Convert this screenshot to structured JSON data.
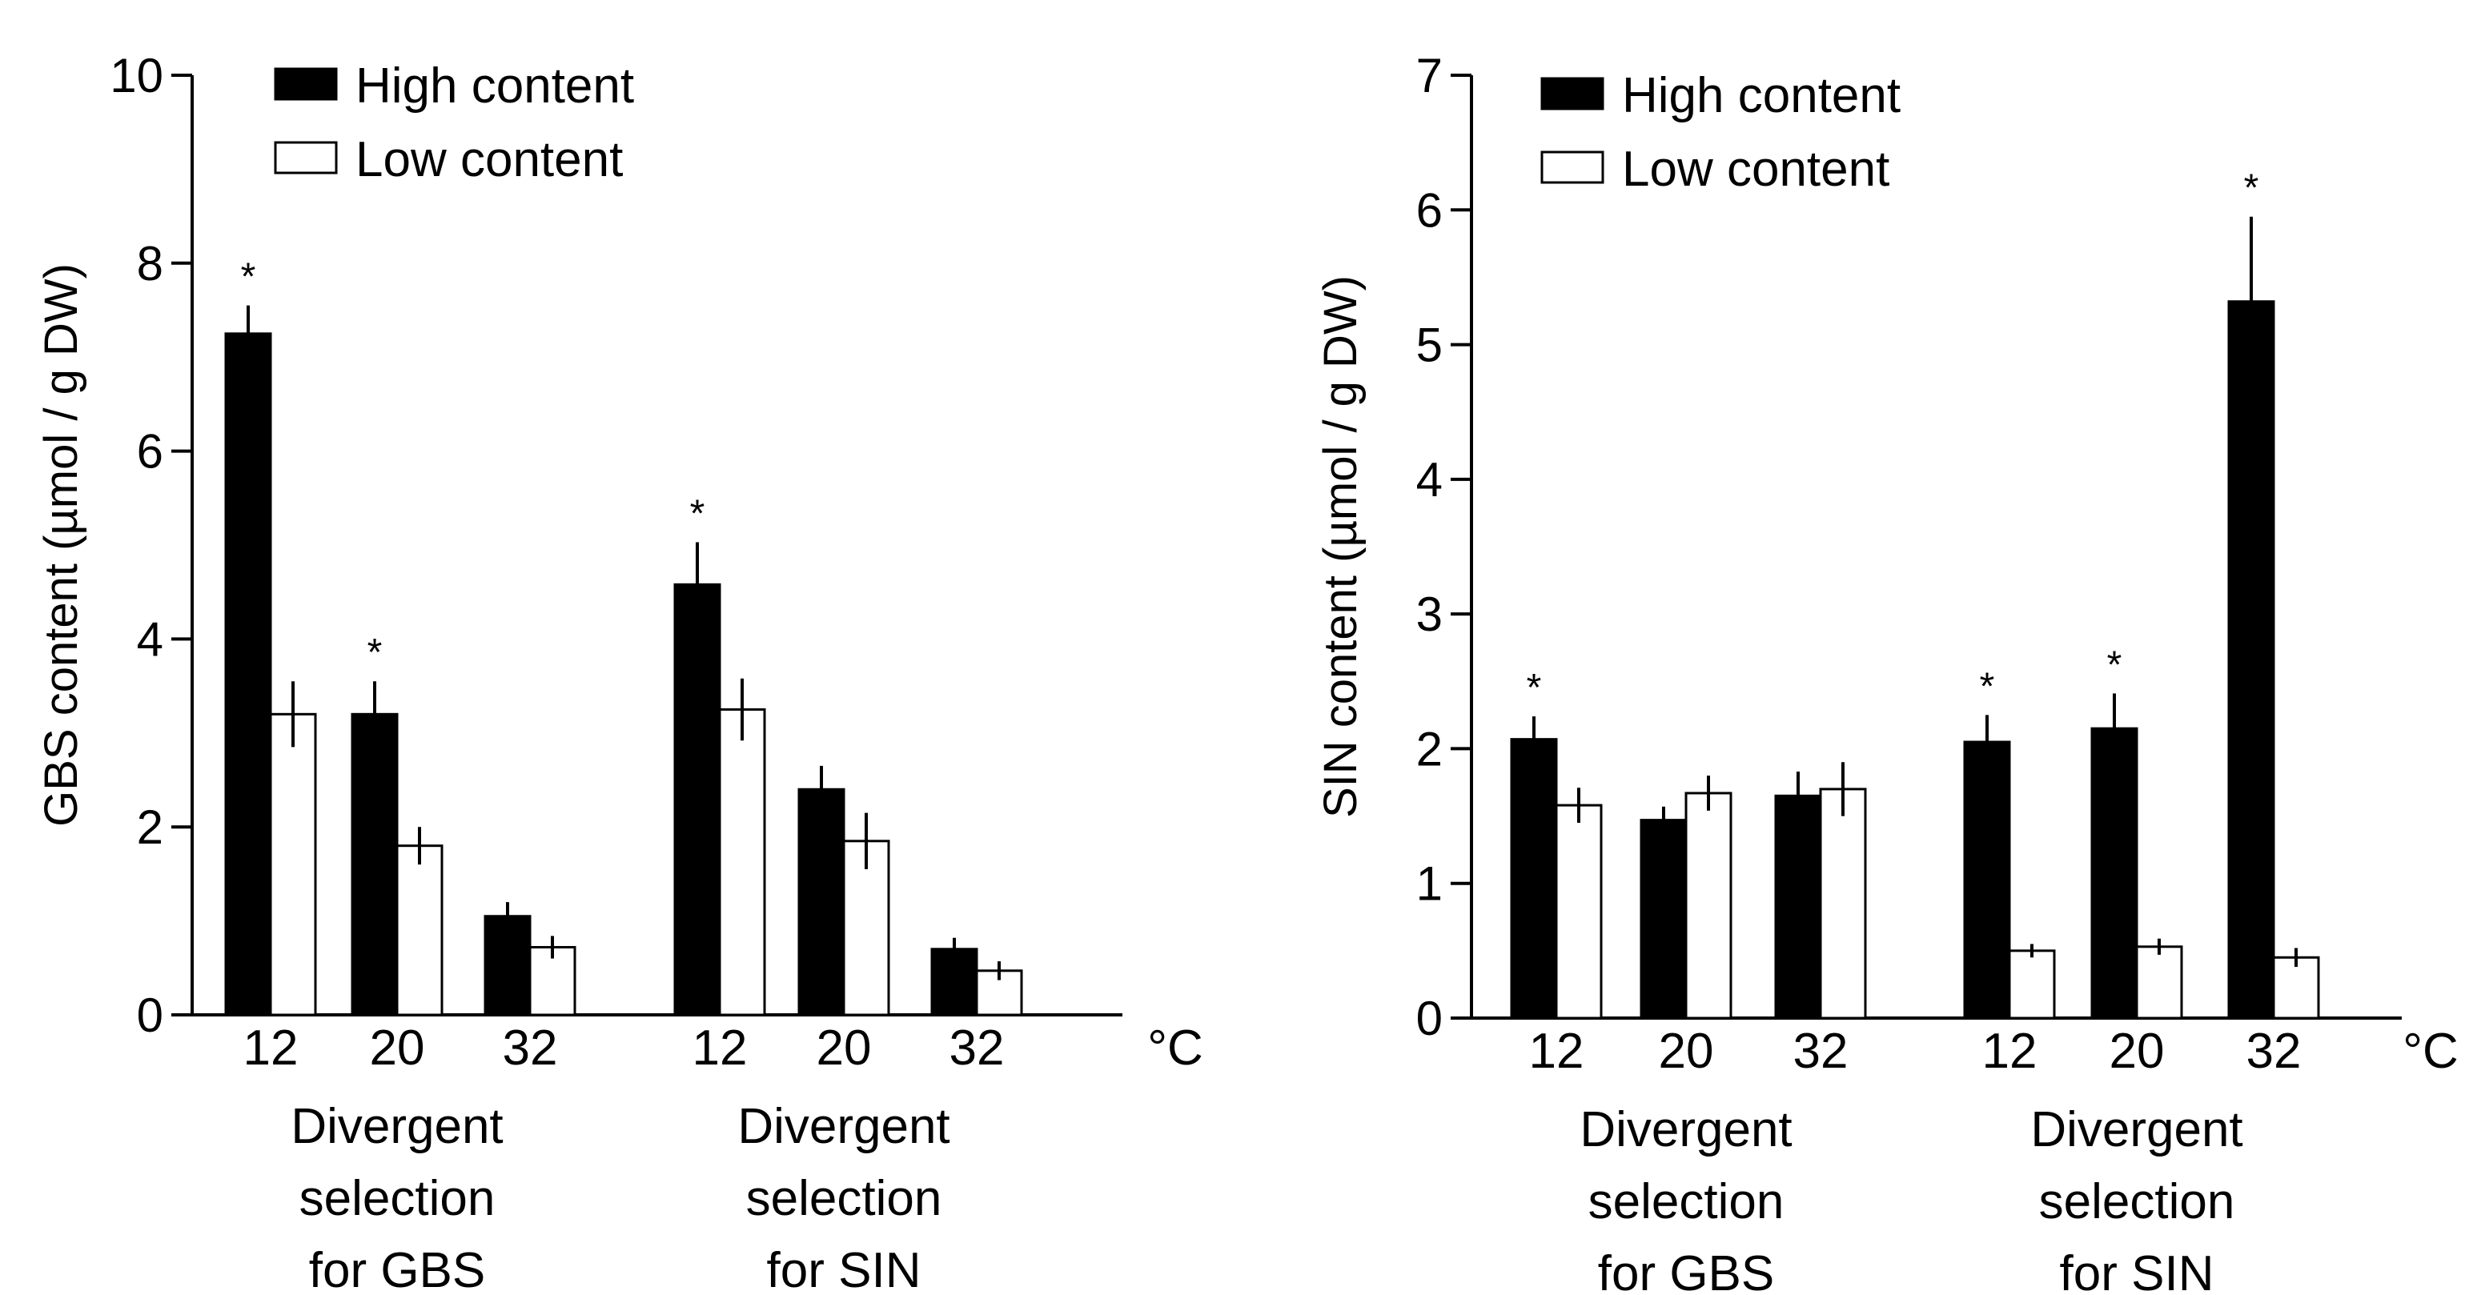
{
  "chart_data": [
    {
      "type": "bar",
      "ylabel": "GBS content (µmol / g DW)",
      "ylim": [
        0,
        10
      ],
      "yticks": [
        0,
        2,
        4,
        6,
        8,
        10
      ],
      "unit_label": "°C",
      "categories": [
        "12",
        "20",
        "32",
        "12",
        "20",
        "32"
      ],
      "groups": [
        {
          "label_lines": [
            "Divergent",
            "selection",
            "for GBS"
          ],
          "categories": [
            "12",
            "20",
            "32"
          ]
        },
        {
          "label_lines": [
            "Divergent",
            "selection",
            "for SIN"
          ],
          "categories": [
            "12",
            "20",
            "32"
          ]
        }
      ],
      "series": [
        {
          "name": "High content",
          "color": "#000000",
          "values": [
            7.25,
            3.2,
            1.05,
            4.58,
            2.4,
            0.7
          ],
          "errors": [
            0.3,
            0.35,
            0.15,
            0.45,
            0.25,
            0.12
          ]
        },
        {
          "name": "Low content",
          "color": "#ffffff",
          "values": [
            3.2,
            1.8,
            0.72,
            3.25,
            1.85,
            0.47
          ],
          "errors": [
            0.35,
            0.2,
            0.12,
            0.33,
            0.3,
            0.1
          ]
        }
      ],
      "significance": [
        "*",
        "*",
        "",
        "*",
        "",
        ""
      ],
      "legend": {
        "position": "top-left",
        "entries": [
          "High content",
          "Low content"
        ]
      }
    },
    {
      "type": "bar",
      "ylabel": "SIN content (µmol / g DW)",
      "ylim": [
        0,
        7
      ],
      "yticks": [
        0,
        1,
        2,
        3,
        4,
        5,
        6,
        7
      ],
      "unit_label": "°C",
      "categories": [
        "12",
        "20",
        "32",
        "12",
        "20",
        "32"
      ],
      "groups": [
        {
          "label_lines": [
            "Divergent",
            "selection",
            "for GBS"
          ],
          "categories": [
            "12",
            "20",
            "32"
          ]
        },
        {
          "label_lines": [
            "Divergent",
            "selection",
            "for SIN"
          ],
          "categories": [
            "12",
            "20",
            "32"
          ]
        }
      ],
      "series": [
        {
          "name": "High content",
          "color": "#000000",
          "values": [
            2.07,
            1.47,
            1.65,
            2.05,
            2.15,
            5.32
          ],
          "errors": [
            0.17,
            0.1,
            0.18,
            0.2,
            0.26,
            0.63
          ]
        },
        {
          "name": "Low content",
          "color": "#ffffff",
          "values": [
            1.58,
            1.67,
            1.7,
            0.5,
            0.53,
            0.45
          ],
          "errors": [
            0.13,
            0.13,
            0.2,
            0.05,
            0.06,
            0.07
          ]
        }
      ],
      "significance": [
        "*",
        "",
        "",
        "*",
        "*",
        "*"
      ],
      "legend": {
        "position": "top-left",
        "entries": [
          "High content",
          "Low content"
        ]
      }
    }
  ]
}
